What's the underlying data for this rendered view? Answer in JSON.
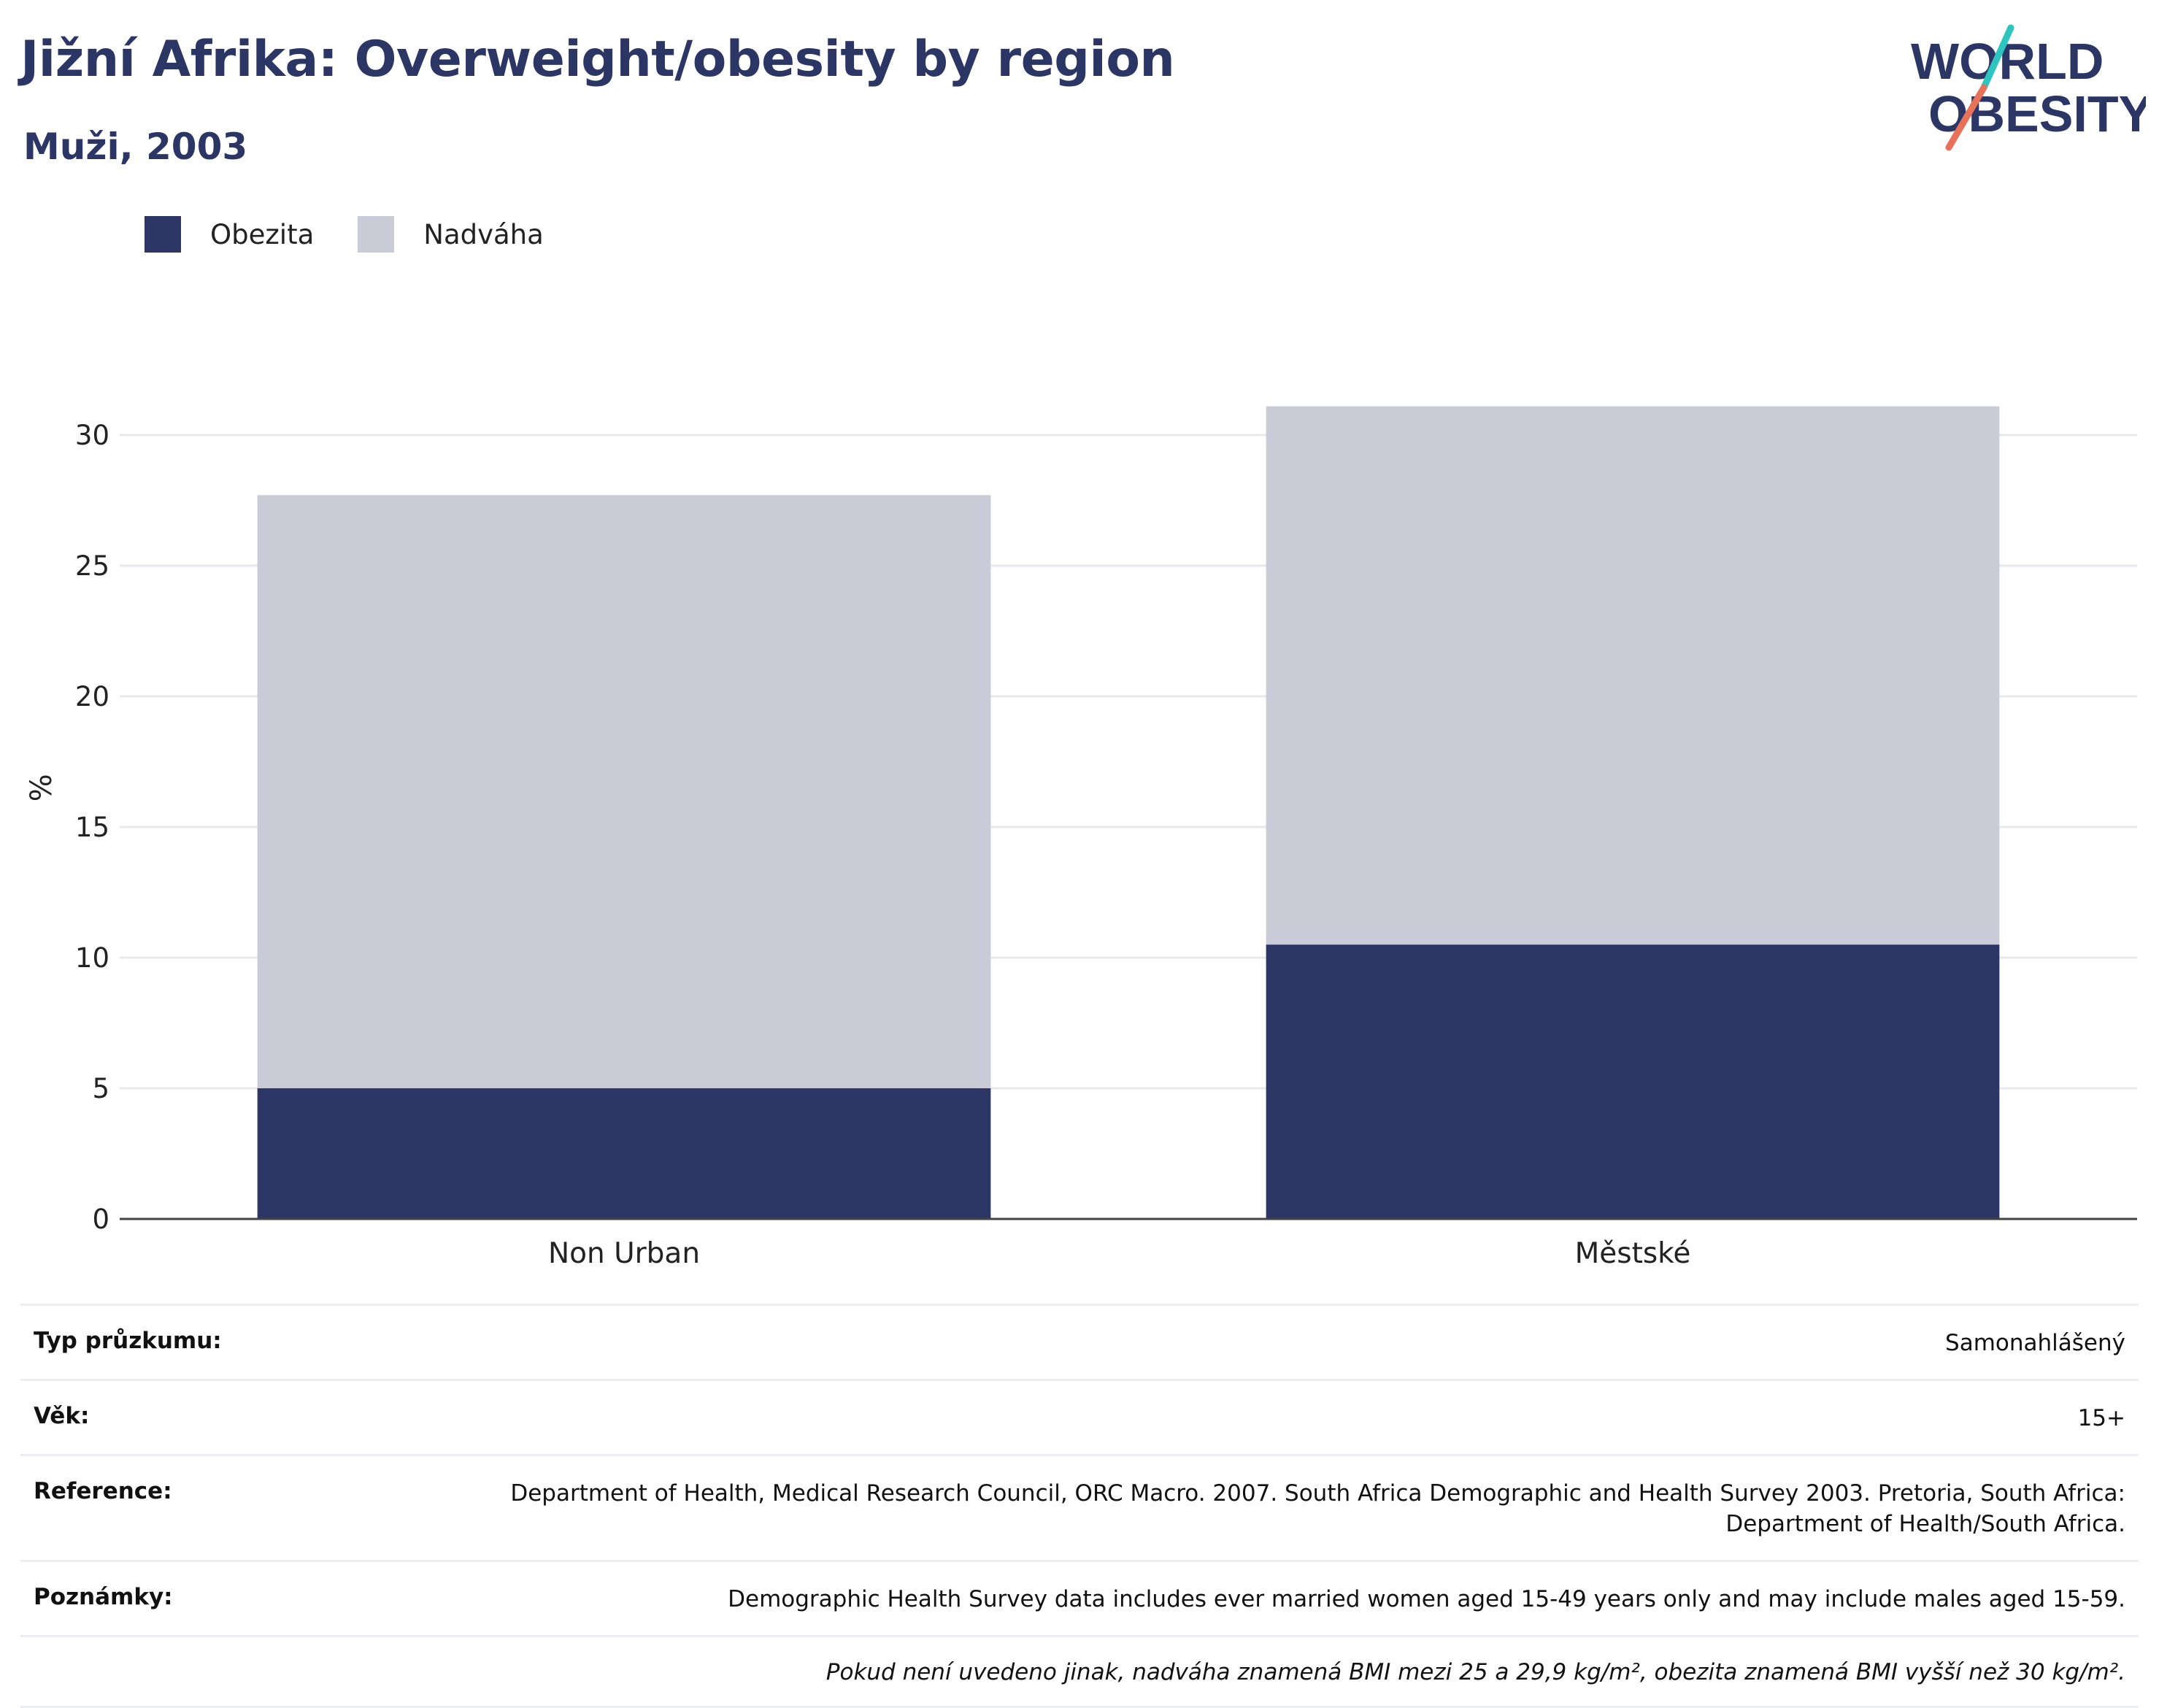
{
  "header": {
    "title": "Jižní Afrika: Overweight/obesity by region",
    "subtitle": "Muži, 2003"
  },
  "logo": {
    "line1": "WORLD",
    "line2": "OBESITY"
  },
  "colors": {
    "obesity": "#2b3664",
    "overweight": "#c9ccd7",
    "title": "#2b3664",
    "logo_teal": "#2ec4c0",
    "logo_coral": "#e8715a"
  },
  "chart_data": {
    "type": "bar",
    "stacked": true,
    "categories": [
      "Non Urban",
      "Městské"
    ],
    "series": [
      {
        "name": "Obezita",
        "values": [
          5.0,
          10.5
        ]
      },
      {
        "name": "Nadváha",
        "values": [
          22.7,
          20.6
        ]
      }
    ],
    "ylabel": "%",
    "ylim": [
      0,
      33
    ],
    "yticks": [
      0,
      5,
      10,
      15,
      20,
      25,
      30
    ],
    "grid": true,
    "legend": "top-left"
  },
  "info": {
    "survey_type_label": "Typ průzkumu:",
    "survey_type_value": "Samonahlášený",
    "age_label": "Věk:",
    "age_value": "15+",
    "reference_label": "Reference:",
    "reference_value": "Department of Health, Medical Research Council, ORC Macro. 2007. South Africa Demographic and Health Survey 2003. Pretoria, South Africa: Department of Health/South Africa.",
    "notes_label": "Poznámky:",
    "notes_value": "Demographic Health Survey data includes ever married women aged 15-49 years only and may include males aged 15-59.",
    "footnote": "Pokud není uvedeno jinak, nadváha znamená BMI mezi 25 a 29,9 kg/m², obezita znamená BMI vyšší než 30 kg/m²."
  }
}
